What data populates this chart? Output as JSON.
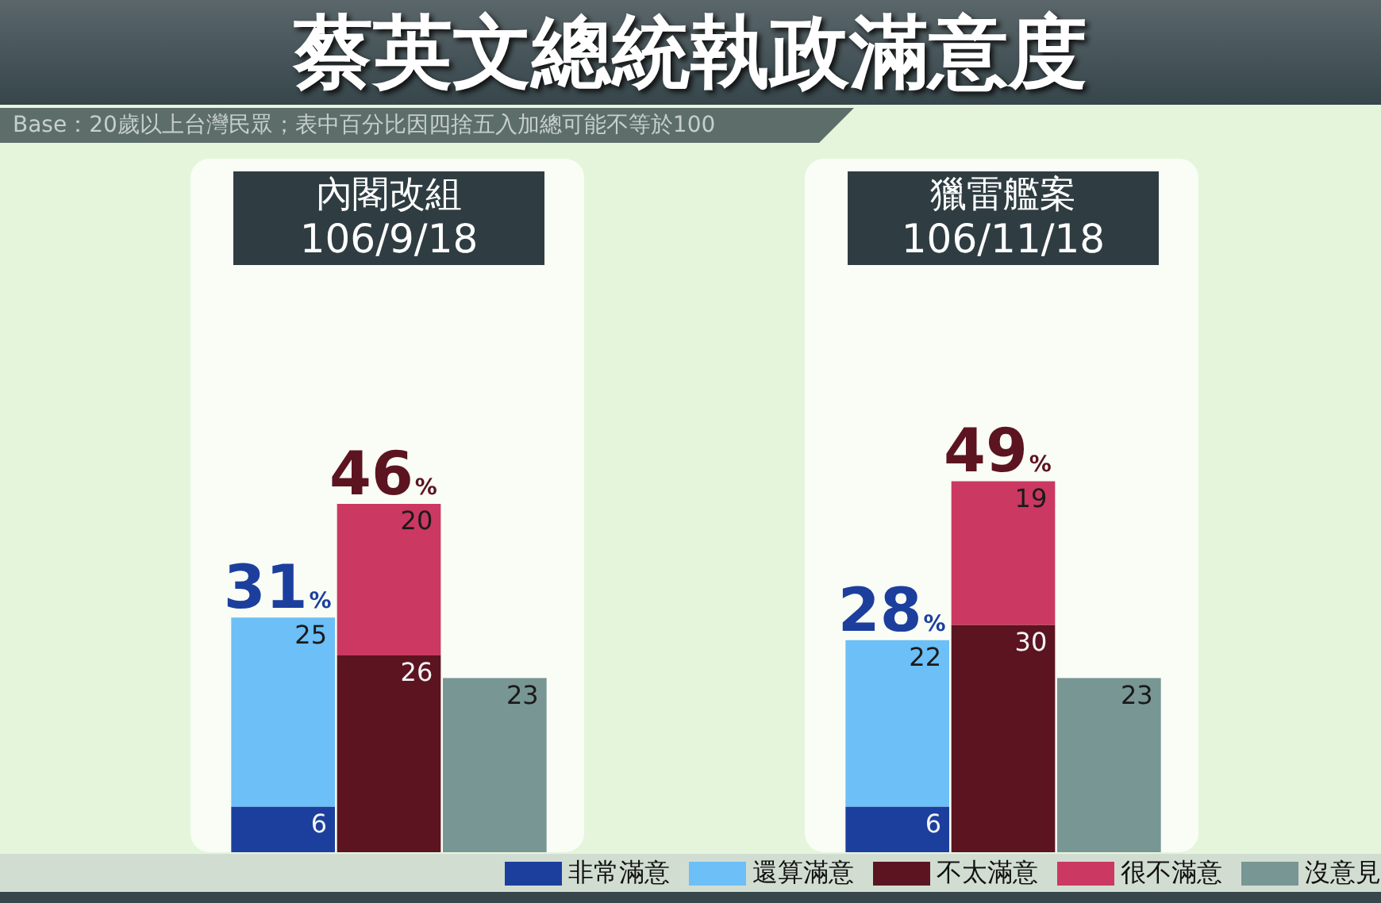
{
  "chart_data": [
    {
      "type": "bar",
      "title": "內閣改組\n106/9/18",
      "annotations": [
        "蔡英文總統執政滿意度",
        "Base：20歲以上台灣民眾；表中百分比因四捨五入加總可能不等於100"
      ],
      "categories": [
        null,
        null,
        null
      ],
      "stacked": true,
      "data_labels": true,
      "totals": [
        "31%",
        "46%",
        null
      ],
      "legend": "bottom right",
      "series": [
        {
          "name": "非常滿意",
          "color": "#1c3f9e",
          "values": [
            6,
            null,
            null
          ]
        },
        {
          "name": "還算滿意",
          "color": "#6cbff7",
          "values": [
            25,
            null,
            null
          ]
        },
        {
          "name": "不太滿意",
          "color": "#5c1420",
          "values": [
            null,
            26,
            null
          ]
        },
        {
          "name": "很不滿意",
          "color": "#cb3862",
          "values": [
            null,
            20,
            null
          ]
        },
        {
          "name": "沒意見",
          "color": "#789693",
          "values": [
            null,
            null,
            23
          ]
        }
      ]
    },
    {
      "type": "bar",
      "title": "獵雷艦案\n106/11/18",
      "categories": [
        null,
        null,
        null
      ],
      "stacked": true,
      "data_labels": true,
      "totals": [
        "28%",
        "49%",
        null
      ],
      "series": [
        {
          "color": "#1c3f9e",
          "values": [
            6,
            null,
            null
          ]
        },
        {
          "color": "#6cbff7",
          "values": [
            22,
            null,
            null
          ]
        },
        {
          "color": "#5c1420",
          "values": [
            null,
            30,
            null
          ]
        },
        {
          "color": "#cb3862",
          "values": [
            null,
            19,
            null
          ]
        },
        {
          "color": "#789693",
          "values": [
            null,
            null,
            23
          ]
        }
      ]
    }
  ]
}
